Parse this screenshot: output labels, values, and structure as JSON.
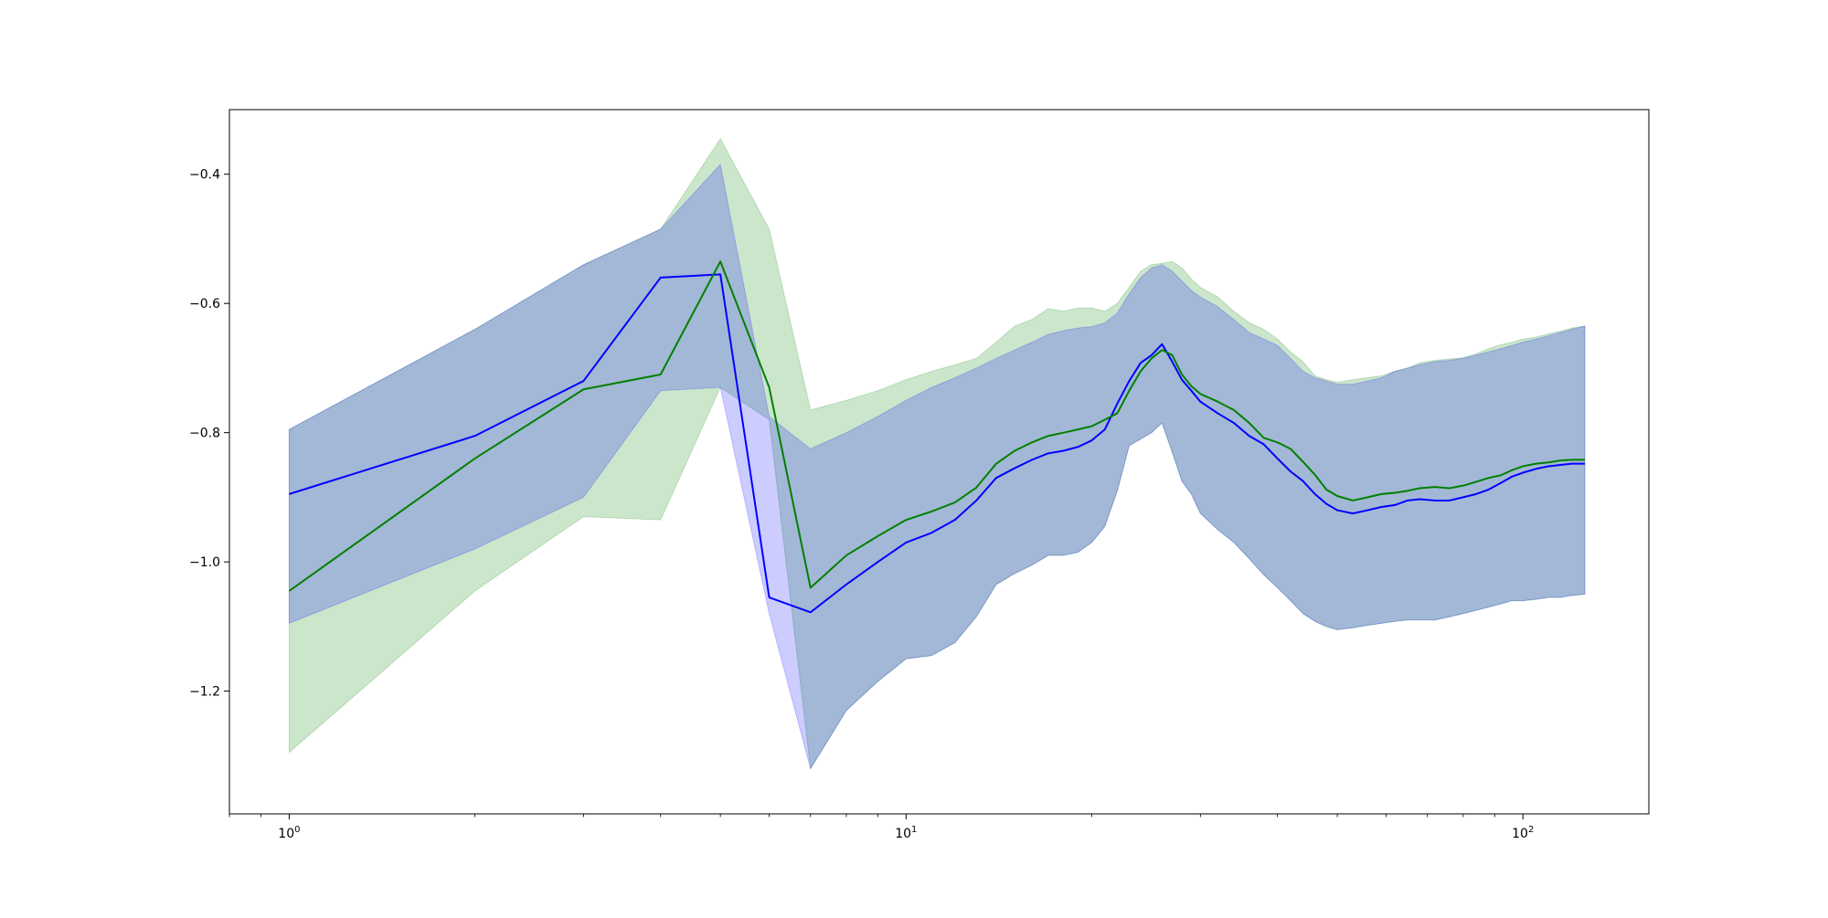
{
  "chart_data": {
    "type": "line",
    "title": "",
    "xlabel": "",
    "ylabel": "",
    "xscale": "log",
    "xlim": [
      0.8,
      160
    ],
    "ylim": [
      -1.39,
      -0.3
    ],
    "grid": false,
    "legend": "none",
    "yticks": [
      -0.4,
      -0.6,
      -0.8,
      -1.0,
      -1.2
    ],
    "ytick_labels": [
      "−0.4",
      "−0.6",
      "−0.8",
      "−1.0",
      "−1.2"
    ],
    "xticks": [
      {
        "value": 1,
        "base": "10",
        "exp": "0"
      },
      {
        "value": 10,
        "base": "10",
        "exp": "1"
      },
      {
        "value": 100,
        "base": "10",
        "exp": "2"
      }
    ],
    "x": [
      1,
      2,
      3,
      4,
      5,
      6,
      7,
      8,
      9,
      10,
      11,
      12,
      13,
      14,
      15,
      16,
      17,
      18,
      19,
      20,
      21,
      22,
      23,
      24,
      25,
      26,
      27,
      28,
      29,
      30,
      32,
      34,
      36,
      38,
      40,
      42,
      44,
      46,
      48,
      50,
      53,
      56,
      59,
      62,
      65,
      68,
      72,
      76,
      80,
      84,
      88,
      92,
      96,
      100,
      105,
      110,
      115,
      120,
      126
    ],
    "series": [
      {
        "color": "#0000ff",
        "band_color": "#0000ff",
        "band_opacity": 0.2,
        "values": [
          -0.895,
          -0.805,
          -0.72,
          -0.56,
          -0.555,
          -1.055,
          -1.078,
          -1.035,
          -1.0,
          -0.97,
          -0.955,
          -0.935,
          -0.905,
          -0.87,
          -0.855,
          -0.842,
          -0.832,
          -0.828,
          -0.822,
          -0.812,
          -0.795,
          -0.755,
          -0.72,
          -0.692,
          -0.68,
          -0.663,
          -0.69,
          -0.718,
          -0.735,
          -0.752,
          -0.77,
          -0.785,
          -0.805,
          -0.818,
          -0.84,
          -0.86,
          -0.875,
          -0.895,
          -0.91,
          -0.92,
          -0.925,
          -0.92,
          -0.915,
          -0.912,
          -0.905,
          -0.903,
          -0.905,
          -0.905,
          -0.9,
          -0.895,
          -0.888,
          -0.878,
          -0.868,
          -0.862,
          -0.856,
          -0.852,
          -0.85,
          -0.848,
          -0.848
        ],
        "lower": [
          -1.095,
          -0.98,
          -0.9,
          -0.735,
          -0.73,
          -1.08,
          -1.32,
          -1.23,
          -1.185,
          -1.15,
          -1.145,
          -1.125,
          -1.085,
          -1.035,
          -1.018,
          -1.005,
          -0.99,
          -0.99,
          -0.985,
          -0.97,
          -0.945,
          -0.89,
          -0.82,
          -0.81,
          -0.8,
          -0.785,
          -0.83,
          -0.875,
          -0.895,
          -0.925,
          -0.95,
          -0.97,
          -0.995,
          -1.02,
          -1.04,
          -1.06,
          -1.08,
          -1.092,
          -1.1,
          -1.105,
          -1.102,
          -1.098,
          -1.095,
          -1.092,
          -1.09,
          -1.09,
          -1.09,
          -1.085,
          -1.08,
          -1.075,
          -1.07,
          -1.065,
          -1.06,
          -1.06,
          -1.058,
          -1.055,
          -1.055,
          -1.052,
          -1.05
        ],
        "upper": [
          -0.795,
          -0.64,
          -0.54,
          -0.485,
          -0.385,
          -0.775,
          -0.825,
          -0.8,
          -0.775,
          -0.75,
          -0.73,
          -0.715,
          -0.7,
          -0.685,
          -0.672,
          -0.66,
          -0.648,
          -0.642,
          -0.638,
          -0.636,
          -0.63,
          -0.615,
          -0.585,
          -0.56,
          -0.545,
          -0.54,
          -0.55,
          -0.565,
          -0.58,
          -0.59,
          -0.605,
          -0.625,
          -0.645,
          -0.655,
          -0.665,
          -0.685,
          -0.705,
          -0.715,
          -0.72,
          -0.725,
          -0.725,
          -0.72,
          -0.715,
          -0.705,
          -0.7,
          -0.695,
          -0.69,
          -0.688,
          -0.685,
          -0.68,
          -0.675,
          -0.67,
          -0.665,
          -0.66,
          -0.655,
          -0.65,
          -0.645,
          -0.64,
          -0.635
        ]
      },
      {
        "color": "#008000",
        "band_color": "#008000",
        "band_opacity": 0.2,
        "values": [
          -1.045,
          -0.84,
          -0.733,
          -0.71,
          -0.535,
          -0.73,
          -1.04,
          -0.99,
          -0.96,
          -0.935,
          -0.922,
          -0.908,
          -0.885,
          -0.848,
          -0.828,
          -0.815,
          -0.805,
          -0.8,
          -0.795,
          -0.79,
          -0.78,
          -0.77,
          -0.735,
          -0.705,
          -0.685,
          -0.672,
          -0.68,
          -0.71,
          -0.728,
          -0.74,
          -0.752,
          -0.765,
          -0.785,
          -0.808,
          -0.815,
          -0.825,
          -0.845,
          -0.865,
          -0.888,
          -0.898,
          -0.905,
          -0.9,
          -0.895,
          -0.893,
          -0.89,
          -0.886,
          -0.884,
          -0.886,
          -0.882,
          -0.876,
          -0.87,
          -0.866,
          -0.858,
          -0.852,
          -0.848,
          -0.846,
          -0.843,
          -0.842,
          -0.842
        ],
        "lower": [
          -1.295,
          -1.045,
          -0.93,
          -0.935,
          -0.73,
          -0.78,
          -1.32,
          -1.23,
          -1.185,
          -1.15,
          -1.145,
          -1.125,
          -1.085,
          -1.035,
          -1.018,
          -1.005,
          -0.99,
          -0.99,
          -0.985,
          -0.97,
          -0.945,
          -0.89,
          -0.82,
          -0.81,
          -0.8,
          -0.785,
          -0.83,
          -0.875,
          -0.895,
          -0.925,
          -0.95,
          -0.97,
          -0.995,
          -1.02,
          -1.04,
          -1.06,
          -1.08,
          -1.092,
          -1.1,
          -1.105,
          -1.102,
          -1.098,
          -1.095,
          -1.092,
          -1.09,
          -1.09,
          -1.09,
          -1.085,
          -1.08,
          -1.075,
          -1.07,
          -1.065,
          -1.06,
          -1.06,
          -1.058,
          -1.055,
          -1.055,
          -1.052,
          -1.05
        ],
        "upper": [
          -0.795,
          -0.64,
          -0.54,
          -0.485,
          -0.345,
          -0.485,
          -0.765,
          -0.75,
          -0.735,
          -0.718,
          -0.705,
          -0.695,
          -0.685,
          -0.66,
          -0.635,
          -0.625,
          -0.608,
          -0.612,
          -0.607,
          -0.607,
          -0.612,
          -0.6,
          -0.575,
          -0.55,
          -0.54,
          -0.538,
          -0.535,
          -0.545,
          -0.562,
          -0.575,
          -0.59,
          -0.612,
          -0.63,
          -0.64,
          -0.655,
          -0.675,
          -0.69,
          -0.712,
          -0.718,
          -0.722,
          -0.718,
          -0.715,
          -0.712,
          -0.705,
          -0.7,
          -0.692,
          -0.688,
          -0.686,
          -0.684,
          -0.678,
          -0.67,
          -0.664,
          -0.66,
          -0.655,
          -0.652,
          -0.647,
          -0.643,
          -0.638,
          -0.635
        ]
      }
    ]
  }
}
